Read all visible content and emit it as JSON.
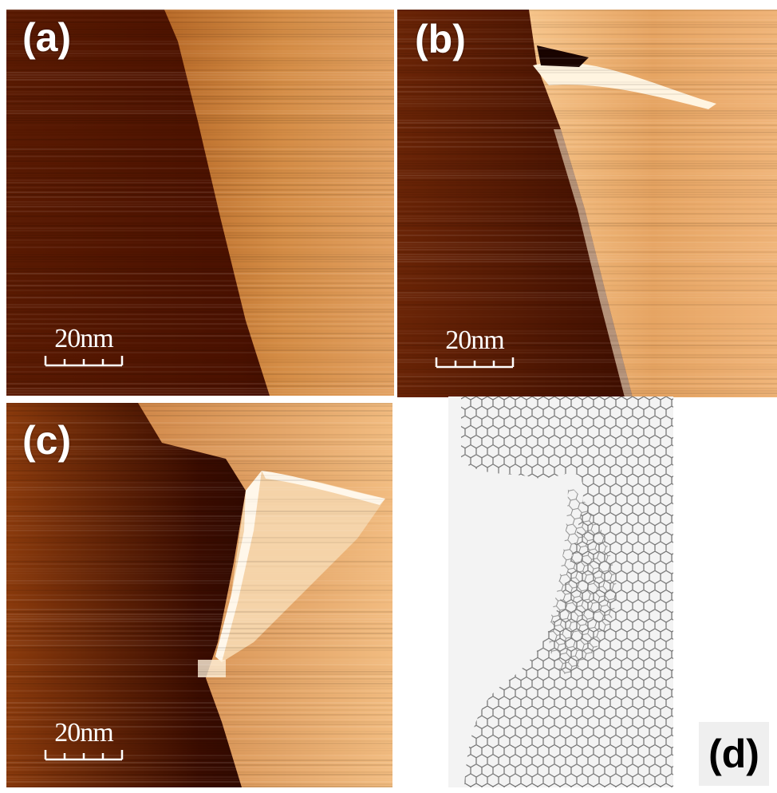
{
  "figure": {
    "panels": [
      {
        "id": "a",
        "label": "(a)",
        "scale_bar": "20nm"
      },
      {
        "id": "b",
        "label": "(b)",
        "scale_bar": "20nm"
      },
      {
        "id": "c",
        "label": "(c)",
        "scale_bar": "20nm"
      },
      {
        "id": "d",
        "label": "(d)"
      }
    ]
  },
  "colors": {
    "dark_terrace": "#3a0c00",
    "mid_terrace": "#9a4a12",
    "bright_terrace": "#e9a25e",
    "fold_highlight": "#fff4e0",
    "lattice_gray": "#6f6f6f",
    "sim_background": "#f3f3f3"
  }
}
